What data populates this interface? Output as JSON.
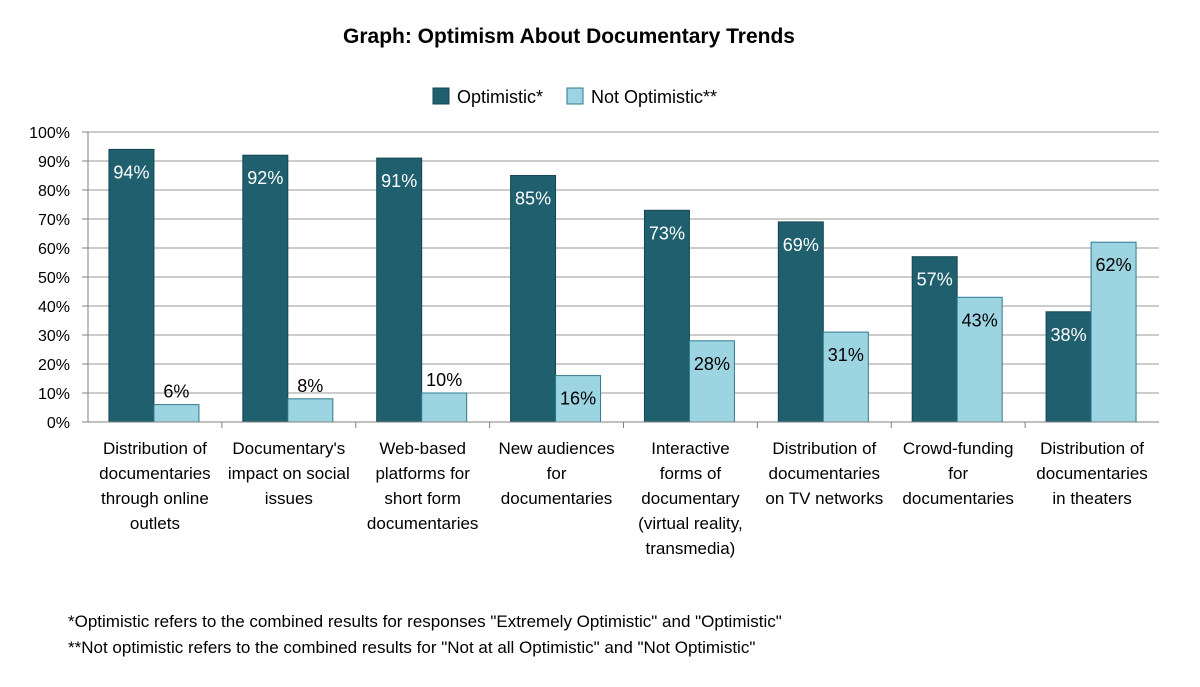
{
  "chart_data": {
    "type": "bar",
    "title": "Graph: Optimism About Documentary Trends",
    "xlabel": "",
    "ylabel": "",
    "ylim": [
      0,
      100
    ],
    "yticks": [
      "0%",
      "10%",
      "20%",
      "30%",
      "40%",
      "50%",
      "60%",
      "70%",
      "80%",
      "90%",
      "100%"
    ],
    "grid": true,
    "legend_position": "top-center",
    "categories": [
      [
        "Distribution of",
        "documentaries",
        "through online",
        "outlets"
      ],
      [
        "Documentary's",
        "impact on social",
        "issues"
      ],
      [
        "Web-based",
        "platforms for",
        "short form",
        "documentaries"
      ],
      [
        "New audiences",
        "for",
        "documentaries"
      ],
      [
        "Interactive",
        "forms of",
        "documentary",
        "(virtual reality,",
        "transmedia)"
      ],
      [
        "Distribution of",
        "documentaries",
        "on TV networks"
      ],
      [
        "Crowd-funding",
        "for",
        "documentaries"
      ],
      [
        "Distribution of",
        "documentaries",
        "in theaters"
      ]
    ],
    "series": [
      {
        "name": "Optimistic*",
        "color": "#1f5f6e",
        "values": [
          94,
          92,
          91,
          85,
          73,
          69,
          57,
          38
        ],
        "labels": [
          "94%",
          "92%",
          "91%",
          "85%",
          "73%",
          "69%",
          "57%",
          "38%"
        ]
      },
      {
        "name": "Not Optimistic**",
        "color": "#9dd4e2",
        "values": [
          6,
          8,
          10,
          16,
          28,
          31,
          43,
          62
        ],
        "labels": [
          "6%",
          "8%",
          "10%",
          "16%",
          "28%",
          "31%",
          "43%",
          "62%"
        ]
      }
    ]
  },
  "footnotes": [
    "*Optimistic refers to the combined results for responses \"Extremely Optimistic\" and \"Optimistic\"",
    "**Not optimistic refers to the combined results for \"Not at all Optimistic\" and \"Not Optimistic\""
  ]
}
